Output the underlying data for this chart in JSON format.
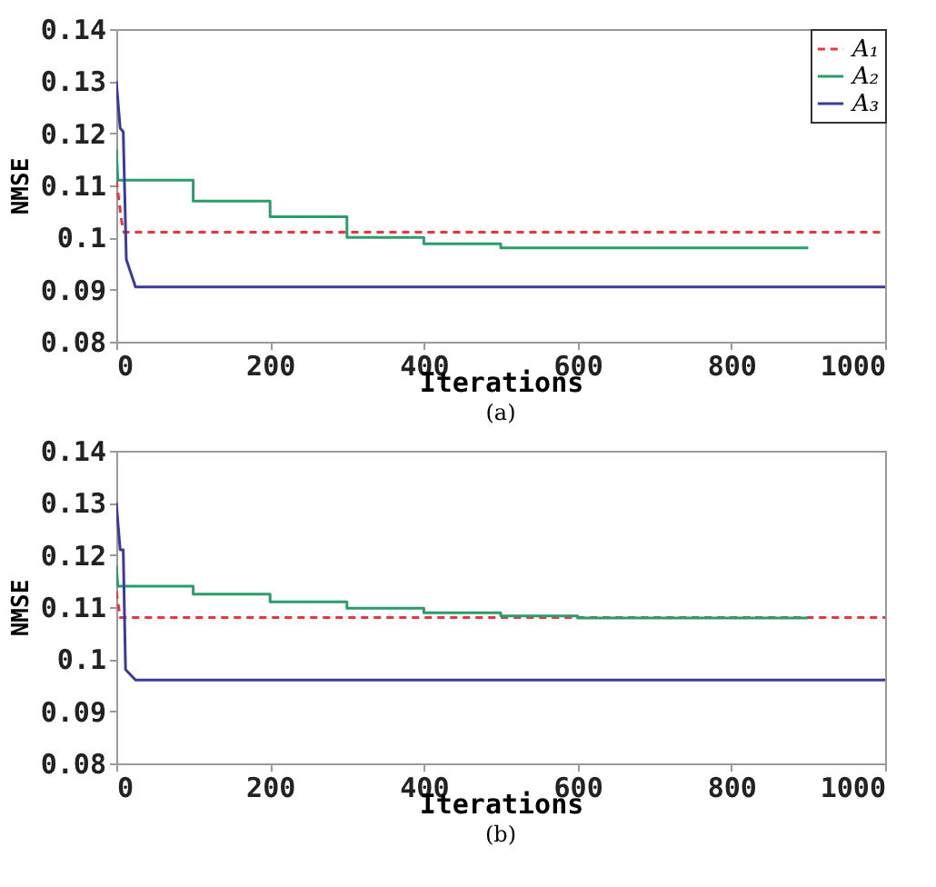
{
  "chart_data": [
    {
      "type": "line",
      "xlabel": "Iterations",
      "ylabel": "NMSE",
      "xlim": [
        0,
        1000
      ],
      "xticks": [
        0,
        200,
        400,
        600,
        800,
        1000
      ],
      "ylim": [
        0.08,
        0.14
      ],
      "yticks": [
        0.08,
        0.09,
        0.1,
        0.11,
        0.12,
        0.13,
        0.14
      ],
      "legend": "top right",
      "grid": false,
      "annotations": [
        "(a)"
      ],
      "series": [
        {
          "name": "A₁",
          "color": "#e8363a",
          "line_style": "dashed",
          "x": [
            0,
            7,
            10,
            1000
          ],
          "values": [
            0.111,
            0.103,
            0.101,
            0.101
          ]
        },
        {
          "name": "A₂",
          "color": "#2a9d6a",
          "line_style": "solid",
          "x": [
            0,
            2,
            100,
            100,
            200,
            200,
            300,
            300,
            400,
            400,
            500,
            500,
            900
          ],
          "values": [
            0.117,
            0.111,
            0.111,
            0.107,
            0.107,
            0.104,
            0.104,
            0.1,
            0.1,
            0.0988,
            0.0988,
            0.098,
            0.098
          ]
        },
        {
          "name": "A₃",
          "color": "#3b3a9c",
          "line_style": "solid",
          "x": [
            0,
            5,
            9,
            13,
            25,
            1000
          ],
          "values": [
            0.13,
            0.121,
            0.1203,
            0.0958,
            0.0905,
            0.0905
          ]
        }
      ]
    },
    {
      "type": "line",
      "xlabel": "Iterations",
      "ylabel": "NMSE",
      "xlim": [
        0,
        1000
      ],
      "xticks": [
        0,
        200,
        400,
        600,
        800,
        1000
      ],
      "ylim": [
        0.08,
        0.14
      ],
      "yticks": [
        0.08,
        0.09,
        0.1,
        0.11,
        0.12,
        0.13,
        0.14
      ],
      "legend": "top right",
      "grid": false,
      "annotations": [
        "(b)"
      ],
      "series": [
        {
          "name": "A₁",
          "color": "#e8363a",
          "line_style": "dashed",
          "x": [
            0,
            5,
            1000
          ],
          "values": [
            0.113,
            0.108,
            0.108
          ]
        },
        {
          "name": "A₂",
          "color": "#2a9d6a",
          "line_style": "solid",
          "x": [
            0,
            2,
            100,
            100,
            200,
            200,
            300,
            300,
            400,
            400,
            500,
            500,
            600,
            600,
            900
          ],
          "values": [
            0.118,
            0.114,
            0.114,
            0.1125,
            0.1125,
            0.111,
            0.111,
            0.1098,
            0.1098,
            0.1089,
            0.1089,
            0.1083,
            0.1083,
            0.1079,
            0.1079
          ]
        },
        {
          "name": "A₃",
          "color": "#3b3a9c",
          "line_style": "solid",
          "x": [
            0,
            5,
            9,
            12,
            25,
            1000
          ],
          "values": [
            0.13,
            0.121,
            0.121,
            0.098,
            0.096,
            0.096
          ]
        }
      ]
    }
  ]
}
